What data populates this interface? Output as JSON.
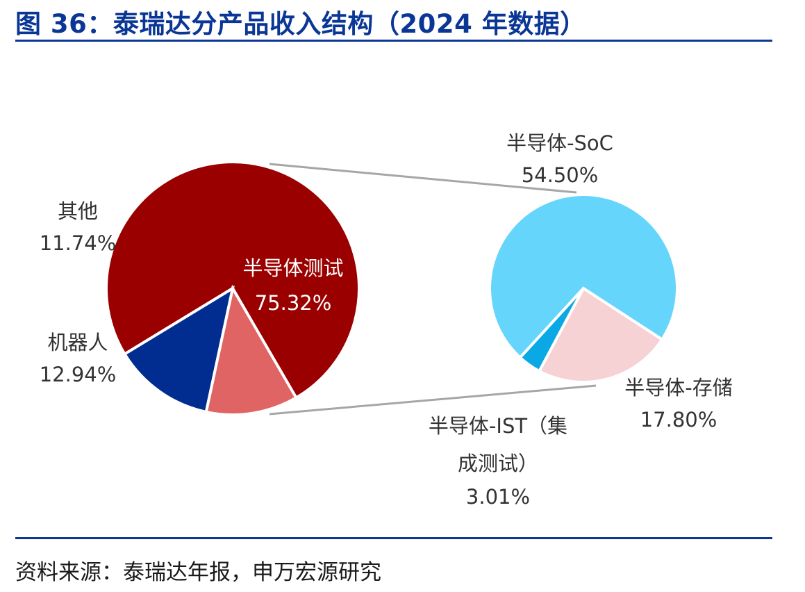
{
  "header": {
    "title": "图 36：泰瑞达分产品收入结构（2024 年数据）"
  },
  "footer": {
    "source": "资料来源：泰瑞达年报，申万宏源研究"
  },
  "chart_data": [
    {
      "type": "pie",
      "slices": [
        {
          "label": "半导体测试",
          "value": 75.32,
          "value_label": "75.32%",
          "color": "#9b0000"
        },
        {
          "label": "机器人",
          "value": 12.94,
          "value_label": "12.94%",
          "color": "#002d8f"
        },
        {
          "label": "其他",
          "value": 11.74,
          "value_label": "11.74%",
          "color": "#e06464"
        }
      ]
    },
    {
      "type": "pie",
      "slices": [
        {
          "label": "半导体-SoC",
          "value": 54.5,
          "value_label": "54.50%",
          "color": "#66d5fb"
        },
        {
          "label": "半导体-存储",
          "value": 17.8,
          "value_label": "17.80%",
          "color": "#f7d2d5"
        },
        {
          "label_line1": "半导体-IST（集",
          "label_line2": "成测试）",
          "value": 3.01,
          "value_label": "3.01%",
          "color": "#0ba8e6"
        }
      ]
    }
  ]
}
